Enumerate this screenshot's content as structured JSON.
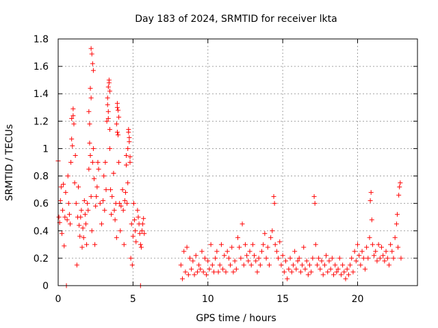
{
  "chart_data": {
    "type": "scatter",
    "title": "Day 183 of 2024, SRMTID for receiver lkta",
    "xlabel": "GPS time / hours",
    "ylabel": "SRMTID / TECUs",
    "xlim": [
      0,
      24
    ],
    "ylim": [
      0,
      1.8
    ],
    "xticks": [
      0,
      5,
      10,
      15,
      20
    ],
    "xtick_labels": [
      "0",
      "5",
      "10",
      "15",
      "20"
    ],
    "yticks": [
      0,
      0.2,
      0.4,
      0.6,
      0.8,
      1.0,
      1.2,
      1.4,
      1.6,
      1.8
    ],
    "ytick_labels": [
      "0",
      "0.2",
      "0.4",
      "0.6",
      "0.8",
      "1",
      "1.2",
      "1.4",
      "1.6",
      "1.8"
    ],
    "grid": true,
    "marker": "+",
    "color": "#ff0000",
    "series": [
      {
        "name": "SRMTID",
        "points": [
          [
            0.0,
            0.91
          ],
          [
            0.05,
            0.5
          ],
          [
            0.1,
            0.46
          ],
          [
            0.15,
            0.62
          ],
          [
            0.2,
            0.72
          ],
          [
            0.25,
            0.38
          ],
          [
            0.3,
            0.55
          ],
          [
            0.35,
            0.74
          ],
          [
            0.4,
            0.29
          ],
          [
            0.45,
            0.5
          ],
          [
            0.5,
            0.68
          ],
          [
            0.55,
            0.0
          ],
          [
            0.6,
            0.48
          ],
          [
            0.65,
            0.8
          ],
          [
            0.7,
            0.6
          ],
          [
            0.75,
            0.52
          ],
          [
            0.8,
            0.45
          ],
          [
            0.85,
            0.9
          ],
          [
            0.9,
            1.07
          ],
          [
            0.95,
            1.02
          ],
          [
            1.0,
            1.29
          ],
          [
            1.05,
            1.18
          ],
          [
            1.1,
            0.75
          ],
          [
            1.15,
            0.95
          ],
          [
            1.2,
            0.6
          ],
          [
            1.25,
            0.15
          ],
          [
            1.3,
            0.5
          ],
          [
            1.35,
            0.72
          ],
          [
            1.4,
            0.44
          ],
          [
            1.45,
            0.36
          ],
          [
            1.5,
            0.5
          ],
          [
            1.55,
            0.55
          ],
          [
            1.6,
            0.28
          ],
          [
            1.65,
            0.42
          ],
          [
            1.7,
            0.35
          ],
          [
            1.75,
            0.62
          ],
          [
            1.8,
            0.52
          ],
          [
            1.85,
            0.45
          ],
          [
            1.9,
            0.3
          ],
          [
            1.95,
            0.6
          ],
          [
            2.0,
            0.55
          ],
          [
            2.05,
            0.85
          ],
          [
            2.1,
            1.04
          ],
          [
            2.15,
            0.95
          ],
          [
            2.2,
            0.65
          ],
          [
            2.25,
            0.4
          ],
          [
            2.3,
            0.9
          ],
          [
            2.35,
            1.0
          ],
          [
            2.4,
            0.78
          ],
          [
            2.45,
            0.3
          ],
          [
            2.5,
            0.58
          ],
          [
            2.55,
            0.65
          ],
          [
            2.6,
            0.72
          ],
          [
            2.65,
            0.9
          ],
          [
            2.7,
            0.85
          ],
          [
            2.8,
            0.6
          ],
          [
            2.9,
            0.45
          ],
          [
            3.0,
            0.62
          ],
          [
            3.05,
            0.8
          ],
          [
            3.1,
            0.55
          ],
          [
            3.15,
            0.9
          ],
          [
            3.2,
            0.7
          ],
          [
            3.25,
            1.2
          ],
          [
            3.3,
            1.32
          ],
          [
            3.35,
            1.45
          ],
          [
            3.4,
            1.5
          ],
          [
            3.45,
            1.0
          ],
          [
            3.5,
            0.7
          ],
          [
            3.55,
            0.52
          ],
          [
            3.6,
            0.65
          ],
          [
            3.7,
            0.82
          ],
          [
            3.75,
            0.55
          ],
          [
            3.8,
            0.48
          ],
          [
            3.85,
            0.6
          ],
          [
            3.9,
            0.35
          ],
          [
            3.95,
            1.3
          ],
          [
            4.0,
            1.1
          ],
          [
            4.05,
            0.9
          ],
          [
            4.1,
            0.6
          ],
          [
            4.15,
            0.4
          ],
          [
            4.2,
            0.58
          ],
          [
            4.3,
            0.7
          ],
          [
            4.35,
            0.55
          ],
          [
            4.4,
            0.3
          ],
          [
            4.45,
            0.62
          ],
          [
            4.5,
            0.68
          ],
          [
            4.55,
            0.95
          ],
          [
            4.6,
            0.6
          ],
          [
            4.65,
            0.75
          ],
          [
            4.7,
            1.12
          ],
          [
            4.75,
            1.05
          ],
          [
            4.8,
            0.9
          ],
          [
            4.85,
            0.2
          ],
          [
            4.9,
            0.45
          ],
          [
            4.95,
            0.15
          ],
          [
            5.0,
            0.36
          ],
          [
            5.05,
            0.6
          ],
          [
            5.1,
            0.48
          ],
          [
            5.15,
            0.4
          ],
          [
            5.2,
            0.32
          ],
          [
            5.3,
            0.55
          ],
          [
            5.35,
            0.5
          ],
          [
            5.4,
            0.45
          ],
          [
            5.45,
            0.38
          ],
          [
            5.5,
            0.3
          ],
          [
            5.55,
            0.28
          ],
          [
            5.6,
            0.4
          ],
          [
            5.65,
            0.45
          ],
          [
            5.7,
            0.49
          ],
          [
            5.75,
            0.38
          ],
          [
            5.5,
            0.0
          ],
          [
            0.9,
            1.22
          ],
          [
            1.0,
            1.24
          ],
          [
            2.2,
            1.73
          ],
          [
            2.25,
            1.69
          ],
          [
            2.3,
            1.62
          ],
          [
            2.35,
            1.57
          ],
          [
            2.15,
            1.44
          ],
          [
            2.2,
            1.37
          ],
          [
            2.05,
            1.27
          ],
          [
            2.1,
            1.18
          ],
          [
            3.4,
            1.48
          ],
          [
            3.45,
            1.42
          ],
          [
            3.3,
            1.37
          ],
          [
            3.35,
            1.27
          ],
          [
            3.35,
            1.22
          ],
          [
            3.45,
            1.14
          ],
          [
            3.95,
            1.33
          ],
          [
            4.0,
            1.28
          ],
          [
            4.05,
            1.23
          ],
          [
            3.9,
            1.18
          ],
          [
            3.95,
            1.12
          ],
          [
            4.7,
            1.14
          ],
          [
            4.75,
            1.08
          ],
          [
            4.65,
            1.0
          ],
          [
            4.8,
            0.94
          ],
          [
            4.55,
            0.88
          ],
          [
            8.2,
            0.15
          ],
          [
            8.3,
            0.05
          ],
          [
            8.4,
            0.25
          ],
          [
            8.5,
            0.1
          ],
          [
            8.6,
            0.28
          ],
          [
            8.7,
            0.08
          ],
          [
            8.8,
            0.2
          ],
          [
            8.9,
            0.12
          ],
          [
            9.0,
            0.18
          ],
          [
            9.1,
            0.08
          ],
          [
            9.2,
            0.22
          ],
          [
            9.3,
            0.1
          ],
          [
            9.4,
            0.15
          ],
          [
            9.5,
            0.12
          ],
          [
            9.6,
            0.25
          ],
          [
            9.7,
            0.1
          ],
          [
            9.8,
            0.2
          ],
          [
            9.9,
            0.08
          ],
          [
            10.0,
            0.18
          ],
          [
            10.1,
            0.12
          ],
          [
            10.2,
            0.3
          ],
          [
            10.3,
            0.15
          ],
          [
            10.4,
            0.1
          ],
          [
            10.5,
            0.2
          ],
          [
            10.6,
            0.25
          ],
          [
            10.7,
            0.1
          ],
          [
            10.8,
            0.15
          ],
          [
            10.9,
            0.3
          ],
          [
            11.0,
            0.12
          ],
          [
            11.1,
            0.22
          ],
          [
            11.2,
            0.1
          ],
          [
            11.3,
            0.25
          ],
          [
            11.4,
            0.2
          ],
          [
            11.5,
            0.15
          ],
          [
            11.6,
            0.28
          ],
          [
            11.7,
            0.1
          ],
          [
            11.8,
            0.18
          ],
          [
            11.9,
            0.12
          ],
          [
            12.0,
            0.35
          ],
          [
            12.1,
            0.28
          ],
          [
            12.2,
            0.2
          ],
          [
            12.3,
            0.45
          ],
          [
            12.4,
            0.15
          ],
          [
            12.5,
            0.3
          ],
          [
            12.6,
            0.22
          ],
          [
            12.7,
            0.18
          ],
          [
            12.8,
            0.25
          ],
          [
            12.9,
            0.15
          ],
          [
            13.0,
            0.3
          ],
          [
            13.1,
            0.22
          ],
          [
            13.2,
            0.18
          ],
          [
            13.3,
            0.1
          ],
          [
            13.4,
            0.2
          ],
          [
            13.5,
            0.15
          ],
          [
            13.6,
            0.25
          ],
          [
            13.7,
            0.3
          ],
          [
            13.8,
            0.38
          ],
          [
            13.9,
            0.2
          ],
          [
            14.0,
            0.28
          ],
          [
            14.1,
            0.15
          ],
          [
            14.2,
            0.35
          ],
          [
            14.3,
            0.4
          ],
          [
            14.4,
            0.65
          ],
          [
            14.45,
            0.6
          ],
          [
            14.5,
            0.3
          ],
          [
            14.6,
            0.25
          ],
          [
            14.7,
            0.2
          ],
          [
            14.8,
            0.32
          ],
          [
            14.9,
            0.15
          ],
          [
            15.0,
            0.22
          ],
          [
            15.1,
            0.1
          ],
          [
            15.2,
            0.18
          ],
          [
            15.3,
            0.05
          ],
          [
            15.4,
            0.12
          ],
          [
            15.5,
            0.2
          ],
          [
            15.6,
            0.1
          ],
          [
            15.7,
            0.15
          ],
          [
            15.8,
            0.25
          ],
          [
            15.9,
            0.12
          ],
          [
            16.0,
            0.18
          ],
          [
            16.1,
            0.2
          ],
          [
            16.2,
            0.1
          ],
          [
            16.3,
            0.15
          ],
          [
            16.4,
            0.28
          ],
          [
            16.5,
            0.12
          ],
          [
            16.6,
            0.18
          ],
          [
            16.7,
            0.08
          ],
          [
            16.8,
            0.15
          ],
          [
            16.9,
            0.1
          ],
          [
            17.0,
            0.2
          ],
          [
            17.1,
            0.65
          ],
          [
            17.15,
            0.6
          ],
          [
            17.2,
            0.3
          ],
          [
            17.3,
            0.15
          ],
          [
            17.4,
            0.2
          ],
          [
            17.5,
            0.12
          ],
          [
            17.6,
            0.18
          ],
          [
            17.7,
            0.08
          ],
          [
            17.8,
            0.15
          ],
          [
            17.9,
            0.22
          ],
          [
            18.0,
            0.1
          ],
          [
            18.1,
            0.18
          ],
          [
            18.2,
            0.12
          ],
          [
            18.3,
            0.2
          ],
          [
            18.4,
            0.08
          ],
          [
            18.5,
            0.15
          ],
          [
            18.6,
            0.1
          ],
          [
            18.7,
            0.12
          ],
          [
            18.8,
            0.2
          ],
          [
            18.9,
            0.08
          ],
          [
            19.0,
            0.15
          ],
          [
            19.1,
            0.1
          ],
          [
            19.2,
            0.05
          ],
          [
            19.3,
            0.12
          ],
          [
            19.4,
            0.08
          ],
          [
            19.5,
            0.15
          ],
          [
            19.6,
            0.2
          ],
          [
            19.7,
            0.1
          ],
          [
            19.8,
            0.25
          ],
          [
            19.9,
            0.18
          ],
          [
            20.0,
            0.3
          ],
          [
            20.1,
            0.22
          ],
          [
            20.2,
            0.15
          ],
          [
            20.3,
            0.25
          ],
          [
            20.4,
            0.2
          ],
          [
            20.5,
            0.12
          ],
          [
            20.6,
            0.28
          ],
          [
            20.7,
            0.2
          ],
          [
            20.8,
            0.35
          ],
          [
            20.85,
            0.62
          ],
          [
            20.9,
            0.68
          ],
          [
            20.95,
            0.48
          ],
          [
            21.0,
            0.3
          ],
          [
            21.1,
            0.22
          ],
          [
            21.2,
            0.25
          ],
          [
            21.3,
            0.18
          ],
          [
            21.4,
            0.3
          ],
          [
            21.5,
            0.2
          ],
          [
            21.6,
            0.28
          ],
          [
            21.7,
            0.22
          ],
          [
            21.8,
            0.18
          ],
          [
            21.9,
            0.25
          ],
          [
            22.0,
            0.2
          ],
          [
            22.1,
            0.15
          ],
          [
            22.2,
            0.3
          ],
          [
            22.3,
            0.25
          ],
          [
            22.4,
            0.2
          ],
          [
            22.5,
            0.35
          ],
          [
            22.6,
            0.45
          ],
          [
            22.65,
            0.52
          ],
          [
            22.7,
            0.28
          ],
          [
            22.75,
            0.66
          ],
          [
            22.8,
            0.72
          ],
          [
            22.85,
            0.75
          ],
          [
            22.9,
            0.2
          ]
        ]
      }
    ]
  }
}
